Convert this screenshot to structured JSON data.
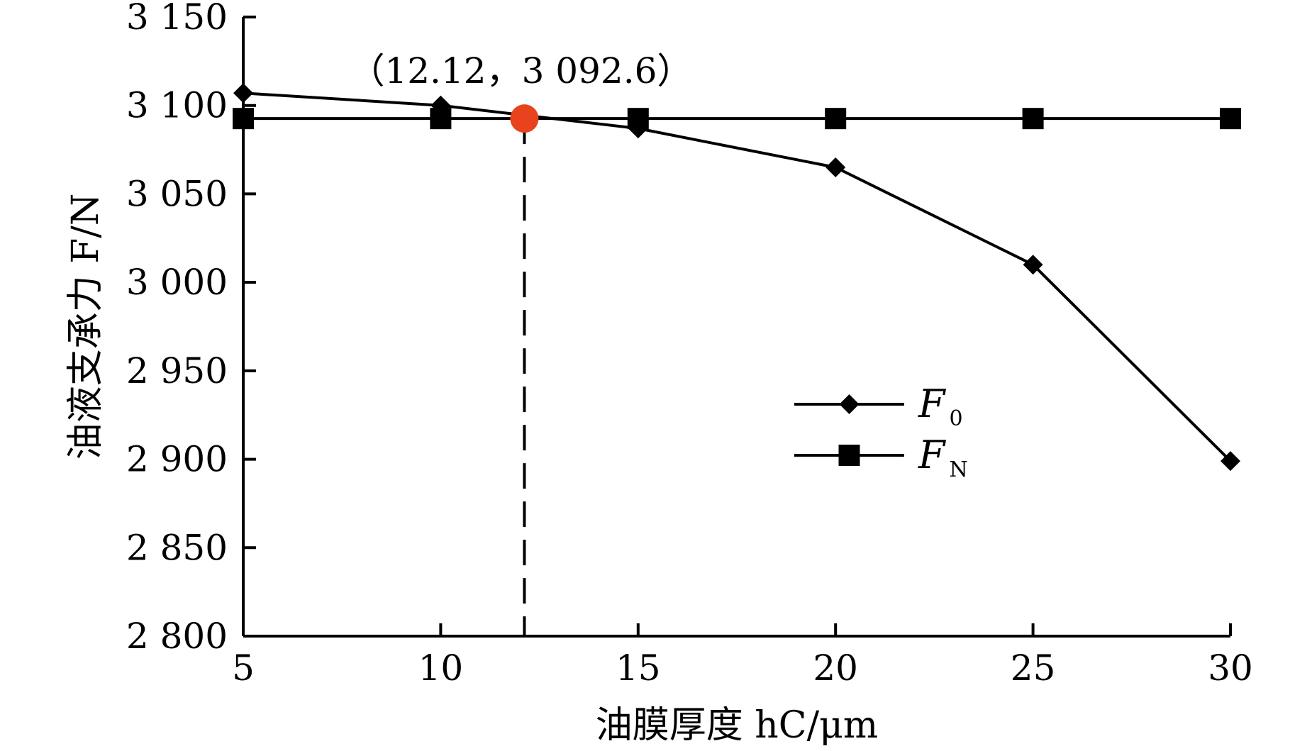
{
  "chart_data": {
    "type": "line",
    "x": [
      5,
      10,
      15,
      20,
      25,
      30
    ],
    "series": [
      {
        "name": "F0",
        "label_main": "F",
        "label_sub": "0",
        "marker": "diamond",
        "values": [
          3107,
          3100,
          3087,
          3065,
          3010,
          2899
        ]
      },
      {
        "name": "FN",
        "label_main": "F",
        "label_sub": "N",
        "marker": "square",
        "values": [
          3092.6,
          3092.6,
          3092.6,
          3092.6,
          3092.6,
          3092.6
        ]
      }
    ],
    "intersection": {
      "x": 12.12,
      "y": 3092.6,
      "label": "（12.12，3 092.6）",
      "color": "#e8431c"
    },
    "xlim": [
      5,
      30
    ],
    "ylim": [
      2800,
      3150
    ],
    "xticks": [
      5,
      10,
      15,
      20,
      25,
      30
    ],
    "xtick_labels": [
      "5",
      "10",
      "15",
      "20",
      "25",
      "30"
    ],
    "yticks": [
      2800,
      2850,
      2900,
      2950,
      3000,
      3050,
      3100,
      3150
    ],
    "ytick_labels": [
      "2 800",
      "2 850",
      "2 900",
      "2 950",
      "3 000",
      "3 050",
      "3 100",
      "3 150"
    ],
    "xlabel": "油膜厚度 hC/μm",
    "ylabel": "油液支承力 F/N",
    "legend_position": "center-right",
    "grid": false,
    "line_color": "#000000"
  }
}
